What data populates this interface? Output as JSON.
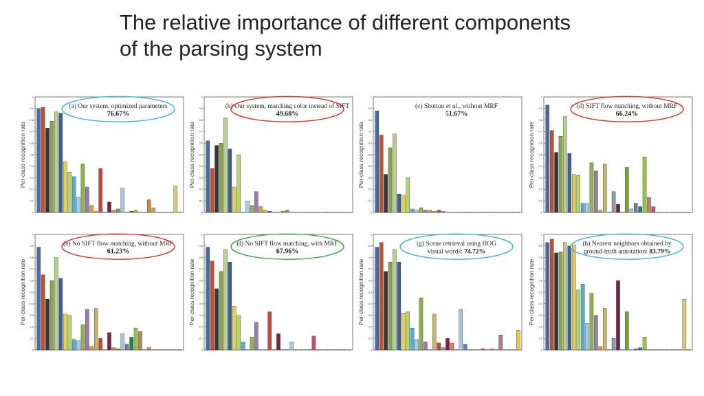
{
  "title_lines": [
    "The relative importance of different components",
    "of the parsing system"
  ],
  "ylabel": "Per-class recognition rate",
  "colors": [
    "#4a6aa8",
    "#c0502e",
    "#33363a",
    "#8aa653",
    "#b9cf8e",
    "#3f5f99",
    "#e7d148",
    "#b5d56e",
    "#56aed4",
    "#9fd0ee",
    "#93b04e",
    "#9a7ea9",
    "#e09a3c",
    "#c9b36f",
    "#c4493b",
    "#8e9ba4",
    "#77244a",
    "#e57d4c",
    "#7aa33b",
    "#a9c4db",
    "#6b7fb0",
    "#2b7d5a",
    "#9bc24a",
    "#b18a5e",
    "#c44f7c",
    "#d98a3a",
    "#c2a26e",
    "#8ebf48",
    "#ab7d97",
    "#9fbfd3",
    "#6d8db4",
    "#d6c97a",
    "#f0c73c"
  ],
  "chart_data": [
    {
      "type": "bar",
      "caption_parts": [
        {
          "text": "(a) Our system, optimized parameters"
        }
      ],
      "score": "76.67%",
      "ellipse": "#3fb4d6",
      "yticks": [
        "0",
        "0.1",
        "0.2",
        "0.3",
        "0.4",
        "0.5",
        "0.6",
        "0.7",
        "0.8",
        "0.9",
        "1"
      ],
      "ylim": [
        0,
        1
      ],
      "values": [
        0.9,
        0.91,
        0.73,
        0.79,
        0.87,
        0.86,
        0.44,
        0.35,
        0.31,
        0.13,
        0.42,
        0.22,
        0.06,
        0.01,
        0.38,
        0.0,
        0.09,
        0.02,
        0.03,
        0.21,
        0.0,
        0.01,
        0.02,
        0.0,
        0.0,
        0.11,
        0.04,
        0.0,
        0.0,
        0.0,
        0.0,
        0.23,
        0.0
      ]
    },
    {
      "type": "bar",
      "caption_parts": [
        {
          "text": "(b) Our system, matching color instead of SIFT"
        }
      ],
      "score": "49.68%",
      "ellipse": "#d0352f",
      "yticks": [
        "0",
        "0.1",
        "0.2",
        "0.3",
        "0.4",
        "0.5",
        "0.6",
        "0.7",
        "0.8",
        "0.9",
        "1"
      ],
      "ylim": [
        0,
        1
      ],
      "values": [
        0.62,
        0.38,
        0.58,
        0.6,
        0.82,
        0.55,
        0.22,
        0.5,
        0.0,
        0.1,
        0.06,
        0.18,
        0.05,
        0.02,
        0.01,
        0.0,
        0.0,
        0.01,
        0.02,
        0.0,
        0.0,
        0.0,
        0.0,
        0.0,
        0.0,
        0.0,
        0.0,
        0.0,
        0.0,
        0.0,
        0.0,
        0.0,
        0.0
      ]
    },
    {
      "type": "bar",
      "caption_parts": [
        {
          "text": "(c) Shotton "
        },
        {
          "text": "et al.",
          "italic": true
        },
        {
          "text": ", without MRF"
        }
      ],
      "score": "51.67%",
      "ellipse": "",
      "yticks": [
        "0",
        "0.1",
        "0.2",
        "0.3",
        "0.4",
        "0.5",
        "0.6",
        "0.7",
        "0.8",
        "0.9",
        "1"
      ],
      "ylim": [
        0,
        1
      ],
      "values": [
        0.88,
        0.67,
        0.33,
        0.56,
        0.68,
        0.16,
        0.15,
        0.3,
        0.03,
        0.02,
        0.04,
        0.02,
        0.02,
        0.01,
        0.02,
        0.01,
        0.0,
        0.0,
        0.0,
        0.0,
        0.0,
        0.0,
        0.0,
        0.0,
        0.0,
        0.0,
        0.0,
        0.0,
        0.0,
        0.0,
        0.0,
        0.0,
        0.0
      ]
    },
    {
      "type": "bar",
      "caption_parts": [
        {
          "text": "(d) SIFT flow matching, without MRF"
        }
      ],
      "score": "66.24%",
      "ellipse": "#d0352f",
      "yticks": [
        "0",
        "0.1",
        "0.2",
        "0.3",
        "0.4",
        "0.5",
        "0.6",
        "0.7",
        "0.8",
        "0.9",
        "1"
      ],
      "ylim": [
        0,
        1
      ],
      "values": [
        0.93,
        0.71,
        0.52,
        0.66,
        0.83,
        0.51,
        0.33,
        0.32,
        0.08,
        0.08,
        0.43,
        0.36,
        0.02,
        0.42,
        0.0,
        0.18,
        0.07,
        0.0,
        0.39,
        0.03,
        0.08,
        0.05,
        0.48,
        0.13,
        0.05,
        0.0,
        0.0,
        0.0,
        0.0,
        0.0,
        0.0,
        0.0,
        0.0
      ]
    },
    {
      "type": "bar",
      "caption_parts": [
        {
          "text": "(e) No SIFT flow matching, without MRF"
        }
      ],
      "score": "61.23%",
      "ellipse": "#d0352f",
      "yticks": [
        "0",
        "0.1",
        "0.2",
        "0.3",
        "0.4",
        "0.5",
        "0.6",
        "0.7",
        "0.8",
        "0.9",
        "1"
      ],
      "ylim": [
        0,
        1
      ],
      "values": [
        0.89,
        0.65,
        0.44,
        0.6,
        0.8,
        0.62,
        0.31,
        0.3,
        0.09,
        0.08,
        0.22,
        0.35,
        0.03,
        0.36,
        0.1,
        0.0,
        0.15,
        0.02,
        0.01,
        0.14,
        0.05,
        0.11,
        0.19,
        0.16,
        0.0,
        0.02,
        0.0,
        0.0,
        0.0,
        0.0,
        0.0,
        0.0,
        0.0
      ]
    },
    {
      "type": "bar",
      "caption_parts": [
        {
          "text": "(f) No SIFT flow matching, with MRF"
        }
      ],
      "score": "67.96%",
      "ellipse": "#3fa34a",
      "yticks": [
        "0",
        "0.1",
        "0.2",
        "0.3",
        "0.4",
        "0.5",
        "0.6",
        "0.7",
        "0.8",
        "0.9",
        "1"
      ],
      "ylim": [
        0,
        1
      ],
      "values": [
        0.89,
        0.77,
        0.53,
        0.68,
        0.87,
        0.76,
        0.38,
        0.3,
        0.07,
        0.0,
        0.11,
        0.24,
        0.0,
        0.0,
        0.33,
        0.0,
        0.14,
        0.0,
        0.0,
        0.07,
        0.0,
        0.0,
        0.0,
        0.0,
        0.12,
        0.0,
        0.0,
        0.0,
        0.0,
        0.0,
        0.0,
        0.0,
        0.0
      ]
    },
    {
      "type": "bar",
      "caption_parts": [
        {
          "text": "(g) Scene retrieval using HOG"
        },
        {
          "text": "visual words: ",
          "newline": true
        },
        {
          "text": "74.72%",
          "bold": true
        }
      ],
      "score": "",
      "ellipse": "#3fb4d6",
      "yticks": [
        "0",
        "0.1",
        "0.2",
        "0.3",
        "0.4",
        "0.5",
        "0.6",
        "0.7",
        "0.8",
        "0.9",
        "1"
      ],
      "ylim": [
        0,
        1
      ],
      "values": [
        0.89,
        0.93,
        0.68,
        0.76,
        0.87,
        0.76,
        0.32,
        0.33,
        0.19,
        0.09,
        0.45,
        0.07,
        0.0,
        0.31,
        0.06,
        0.02,
        0.1,
        0.06,
        0.0,
        0.35,
        0.05,
        0.0,
        0.0,
        0.0,
        0.01,
        0.0,
        0.01,
        0.0,
        0.13,
        0.0,
        0.0,
        0.0,
        0.17
      ]
    },
    {
      "type": "bar",
      "caption_parts": [
        {
          "text": "(h) Nearest neighbors obtained by"
        },
        {
          "text": "ground-truth annotation: ",
          "newline": true
        },
        {
          "text": "83.79%",
          "bold": true
        }
      ],
      "score": "",
      "ellipse": "#3fb4d6",
      "yticks": [
        "0",
        "0.1",
        "0.2",
        "0.3",
        "0.4",
        "0.5",
        "0.6",
        "0.7",
        "0.8",
        "0.9",
        "1"
      ],
      "ylim": [
        0,
        1
      ],
      "values": [
        0.93,
        0.96,
        0.84,
        0.85,
        0.93,
        0.9,
        0.91,
        0.52,
        0.57,
        0.23,
        0.49,
        0.3,
        0.03,
        0.36,
        0.0,
        0.1,
        0.6,
        0.0,
        0.33,
        0.0,
        0.01,
        0.02,
        0.11,
        0.0,
        0.0,
        0.0,
        0.0,
        0.0,
        0.0,
        0.0,
        0.0,
        0.44,
        0.0
      ]
    }
  ]
}
